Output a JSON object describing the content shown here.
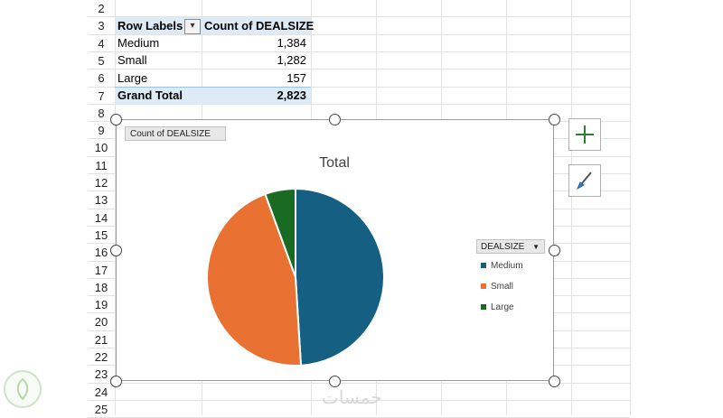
{
  "rows": [
    "2",
    "3",
    "4",
    "5",
    "6",
    "7",
    "8",
    "9",
    "10",
    "11",
    "12",
    "13",
    "14",
    "15",
    "16",
    "17",
    "18",
    "19",
    "20",
    "21",
    "22",
    "23",
    "24",
    "25"
  ],
  "pivot": {
    "header_label": "Row Labels",
    "header_value": "Count of DEALSIZE",
    "rows": [
      {
        "label": "Medium",
        "value": "1,384"
      },
      {
        "label": "Small",
        "value": "1,282"
      },
      {
        "label": "Large",
        "value": "157"
      }
    ],
    "total_label": "Grand Total",
    "total_value": "2,823",
    "filter_icon": "sort-filter-icon"
  },
  "chart": {
    "field_button": "Count of DEALSIZE",
    "legend_title": "DEALSIZE",
    "side_buttons": [
      "plus-icon",
      "brush-icon"
    ]
  },
  "chart_data": {
    "type": "pie",
    "title": "Total",
    "categories": [
      "Medium",
      "Small",
      "Large"
    ],
    "values": [
      1384,
      1282,
      157
    ],
    "colors": [
      "#156082",
      "#e97132",
      "#196b24"
    ],
    "legend_position": "right"
  },
  "watermark": "خمسات"
}
